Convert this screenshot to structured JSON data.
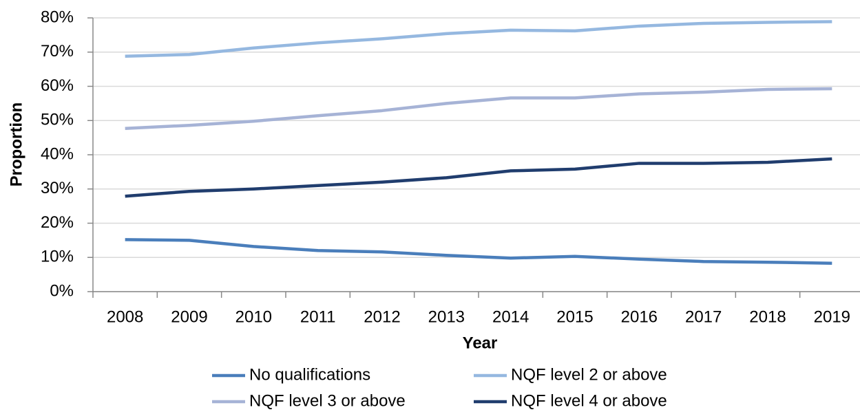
{
  "chart_data": {
    "type": "line",
    "x_label": "Year",
    "y_label": "Proportion",
    "categories": [
      "2008",
      "2009",
      "2010",
      "2011",
      "2012",
      "2013",
      "2014",
      "2015",
      "2016",
      "2017",
      "2018",
      "2019"
    ],
    "series": [
      {
        "name": "No qualifications",
        "color": "#4a7ebb",
        "values": [
          15.2,
          15.0,
          13.2,
          12.0,
          11.6,
          10.6,
          9.8,
          10.3,
          9.5,
          8.8,
          8.6,
          8.3
        ]
      },
      {
        "name": "NQF level 2 or above",
        "color": "#95b8e0",
        "values": [
          68.8,
          69.3,
          71.2,
          72.7,
          73.9,
          75.4,
          76.4,
          76.2,
          77.6,
          78.4,
          78.7,
          78.9
        ]
      },
      {
        "name": "NQF level 3 or above",
        "color": "#a6b3d6",
        "values": [
          47.7,
          48.6,
          49.8,
          51.4,
          52.9,
          55.0,
          56.6,
          56.6,
          57.8,
          58.3,
          59.1,
          59.3
        ]
      },
      {
        "name": "NQF level 4 or above",
        "color": "#203d6e",
        "values": [
          27.9,
          29.3,
          30.0,
          31.0,
          32.0,
          33.3,
          35.3,
          35.8,
          37.5,
          37.5,
          37.8,
          38.8
        ]
      }
    ],
    "ylim": [
      0,
      80
    ],
    "yticks": [
      {
        "value": 0,
        "label": "0%"
      },
      {
        "value": 10,
        "label": "10%"
      },
      {
        "value": 20,
        "label": "20%"
      },
      {
        "value": 30,
        "label": "30%"
      },
      {
        "value": 40,
        "label": "40%"
      },
      {
        "value": 50,
        "label": "50%"
      },
      {
        "value": 60,
        "label": "60%"
      },
      {
        "value": 70,
        "label": "70%"
      },
      {
        "value": 80,
        "label": "80%"
      }
    ],
    "grid": true,
    "legend": "bottom"
  }
}
